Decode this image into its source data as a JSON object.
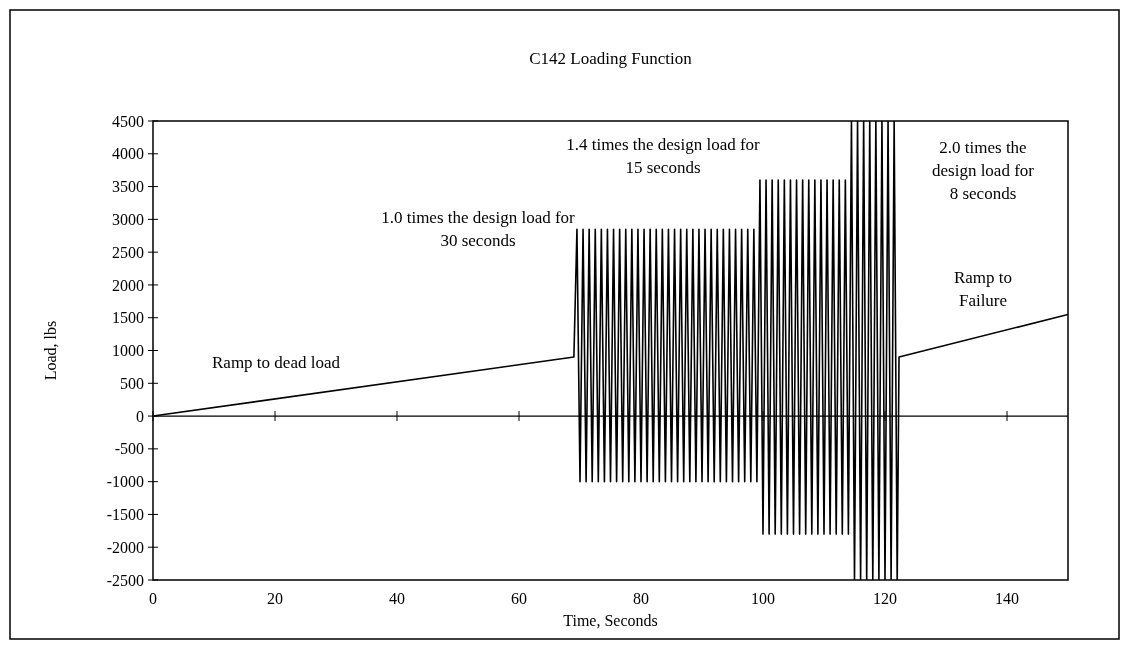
{
  "chart_data": {
    "type": "line",
    "title": "C142 Loading Function",
    "xlabel": "Time, Seconds",
    "ylabel": "Load, lbs",
    "xlim": [
      0,
      150
    ],
    "xticks": [
      0,
      20,
      40,
      60,
      80,
      100,
      120,
      140
    ],
    "ylim": [
      -2500,
      4500
    ],
    "yticks": [
      -2500,
      -2000,
      -1500,
      -1000,
      -500,
      0,
      500,
      1000,
      1500,
      2000,
      2500,
      3000,
      3500,
      4000,
      4500
    ],
    "marker": "none",
    "line_style": "solid",
    "x": [
      0,
      69,
      69.5,
      70,
      70.5,
      71,
      71.5,
      72,
      72.5,
      73,
      73.5,
      74,
      74.5,
      75,
      75.5,
      76,
      76.5,
      77,
      77.5,
      78,
      78.5,
      79,
      79.5,
      80,
      80.5,
      81,
      81.5,
      82,
      82.5,
      83,
      83.5,
      84,
      84.5,
      85,
      85.5,
      86,
      86.5,
      87,
      87.5,
      88,
      88.5,
      89,
      89.5,
      90,
      90.5,
      91,
      91.5,
      92,
      92.5,
      93,
      93.5,
      94,
      94.5,
      95,
      95.5,
      96,
      96.5,
      97,
      97.5,
      98,
      98.5,
      99,
      99.5,
      100,
      100.5,
      101,
      101.5,
      102,
      102.5,
      103,
      103.5,
      104,
      104.5,
      105,
      105.5,
      106,
      106.5,
      107,
      107.5,
      108,
      108.5,
      109,
      109.5,
      110,
      110.5,
      111,
      111.5,
      112,
      112.5,
      113,
      113.5,
      114,
      114.5,
      115,
      115.5,
      116,
      116.5,
      117,
      117.5,
      118,
      118.5,
      119,
      119.5,
      120,
      120.5,
      121,
      121.5,
      122,
      122.3,
      150
    ],
    "series": [
      {
        "color": "#000000",
        "values": [
          0,
          900,
          2850,
          -1000,
          2850,
          -1000,
          2850,
          -1000,
          2850,
          -1000,
          2850,
          -1000,
          2850,
          -1000,
          2850,
          -1000,
          2850,
          -1000,
          2850,
          -1000,
          2850,
          -1000,
          2850,
          -1000,
          2850,
          -1000,
          2850,
          -1000,
          2850,
          -1000,
          2850,
          -1000,
          2850,
          -1000,
          2850,
          -1000,
          2850,
          -1000,
          2850,
          -1000,
          2850,
          -1000,
          2850,
          -1000,
          2850,
          -1000,
          2850,
          -1000,
          2850,
          -1000,
          2850,
          -1000,
          2850,
          -1000,
          2850,
          -1000,
          2850,
          -1000,
          2850,
          -1000,
          2850,
          -1000,
          3600,
          -1800,
          3600,
          -1800,
          3600,
          -1800,
          3600,
          -1800,
          3600,
          -1800,
          3600,
          -1800,
          3600,
          -1800,
          3600,
          -1800,
          3600,
          -1800,
          3600,
          -1800,
          3600,
          -1800,
          3600,
          -1800,
          3600,
          -1800,
          3600,
          -1800,
          3600,
          -1800,
          4500,
          -2500,
          4500,
          -2500,
          4500,
          -2500,
          4500,
          -2500,
          4500,
          -2500,
          4500,
          -2500,
          4500,
          -2500,
          4500,
          -2500,
          900,
          1550
        ]
      }
    ],
    "annotations": [
      "Ramp to dead load",
      "1.0 times the design load for 30 seconds",
      "1.4 times the design load for 15 seconds",
      "2.0 times the design load for 8 seconds",
      "Ramp to Failure"
    ]
  }
}
